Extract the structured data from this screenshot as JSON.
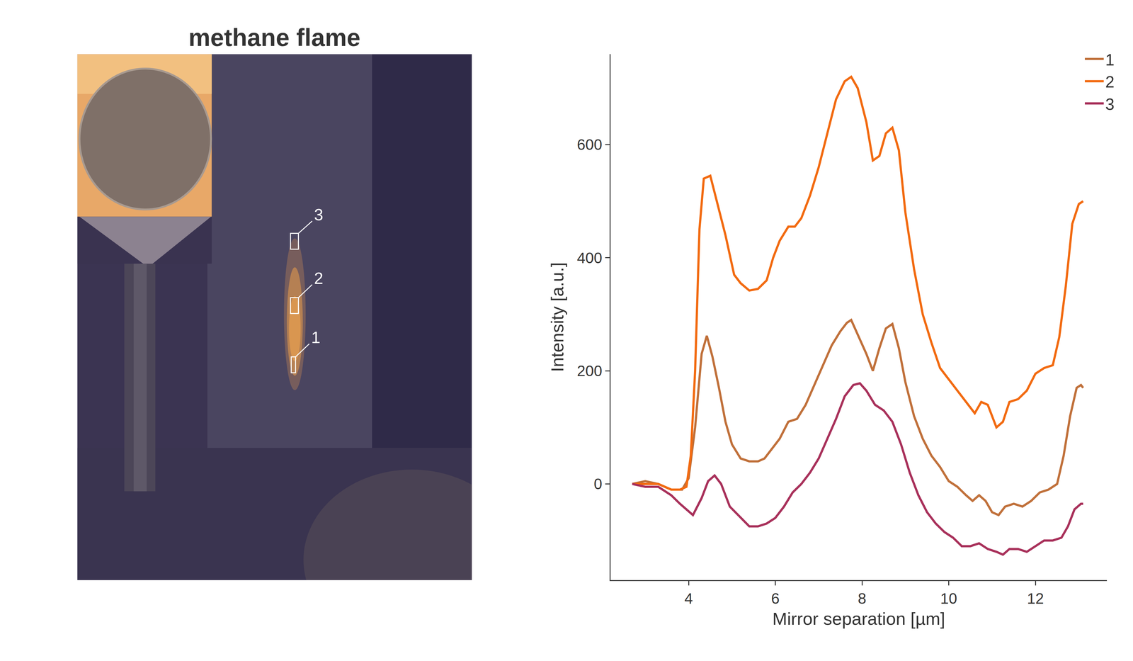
{
  "chart_data": [
    {
      "type": "image",
      "title": "methane flame",
      "labels": [
        "1",
        "2",
        "3"
      ]
    },
    {
      "type": "line",
      "x_label": "Mirror separation [µm]",
      "y_label": "Intensity [a.u.]",
      "xlim": [
        2.2,
        13.65
      ],
      "ylim": [
        -170,
        760
      ],
      "xticks": [
        4,
        6,
        8,
        10,
        12
      ],
      "yticks": [
        0,
        200,
        400,
        600
      ],
      "legend": "top right",
      "grid": false,
      "series": [
        {
          "name": "1",
          "color": "#c0703a",
          "x": [
            2.7,
            3.0,
            3.3,
            3.6,
            3.85,
            4.0,
            4.15,
            4.3,
            4.42,
            4.55,
            4.7,
            4.85,
            5.0,
            5.2,
            5.4,
            5.6,
            5.75,
            5.9,
            6.1,
            6.3,
            6.5,
            6.7,
            6.9,
            7.1,
            7.3,
            7.5,
            7.65,
            7.75,
            7.9,
            8.1,
            8.25,
            8.4,
            8.55,
            8.7,
            8.85,
            9.0,
            9.2,
            9.4,
            9.6,
            9.8,
            10.0,
            10.2,
            10.4,
            10.55,
            10.7,
            10.85,
            11.0,
            11.15,
            11.3,
            11.5,
            11.7,
            11.9,
            12.1,
            12.3,
            12.5,
            12.65,
            12.8,
            12.95,
            13.05,
            13.1
          ],
          "values": [
            0,
            5,
            0,
            -10,
            -10,
            10,
            100,
            230,
            262,
            225,
            170,
            110,
            70,
            45,
            40,
            40,
            45,
            60,
            80,
            110,
            115,
            140,
            175,
            210,
            245,
            270,
            285,
            290,
            265,
            230,
            200,
            240,
            275,
            283,
            240,
            180,
            120,
            80,
            50,
            30,
            5,
            -5,
            -20,
            -30,
            -20,
            -30,
            -50,
            -55,
            -40,
            -35,
            -40,
            -30,
            -15,
            -10,
            0,
            50,
            120,
            170,
            175,
            170
          ]
        },
        {
          "name": "2",
          "color": "#f26a10",
          "x": [
            2.7,
            3.0,
            3.3,
            3.6,
            3.8,
            3.95,
            4.05,
            4.15,
            4.25,
            4.35,
            4.5,
            4.65,
            4.85,
            5.05,
            5.2,
            5.4,
            5.6,
            5.8,
            5.95,
            6.1,
            6.3,
            6.45,
            6.6,
            6.8,
            7.0,
            7.2,
            7.4,
            7.6,
            7.75,
            7.9,
            8.1,
            8.25,
            8.4,
            8.55,
            8.7,
            8.85,
            9.0,
            9.2,
            9.4,
            9.6,
            9.8,
            10.0,
            10.2,
            10.4,
            10.6,
            10.75,
            10.9,
            11.1,
            11.25,
            11.4,
            11.6,
            11.8,
            12.0,
            12.2,
            12.4,
            12.55,
            12.7,
            12.85,
            13.0,
            13.1
          ],
          "values": [
            0,
            0,
            0,
            -10,
            -10,
            -5,
            50,
            200,
            450,
            540,
            545,
            500,
            440,
            370,
            355,
            342,
            345,
            360,
            400,
            430,
            455,
            455,
            470,
            510,
            560,
            620,
            680,
            712,
            720,
            700,
            640,
            572,
            580,
            620,
            630,
            590,
            480,
            380,
            300,
            250,
            205,
            185,
            165,
            145,
            125,
            145,
            140,
            100,
            110,
            145,
            150,
            165,
            195,
            205,
            210,
            260,
            350,
            460,
            495,
            500
          ]
        },
        {
          "name": "3",
          "color": "#a8305a",
          "x": [
            2.7,
            3.0,
            3.3,
            3.6,
            3.8,
            4.1,
            4.3,
            4.45,
            4.6,
            4.75,
            4.95,
            5.2,
            5.4,
            5.6,
            5.8,
            6.0,
            6.2,
            6.4,
            6.6,
            6.8,
            7.0,
            7.2,
            7.4,
            7.6,
            7.8,
            7.95,
            8.1,
            8.3,
            8.5,
            8.7,
            8.9,
            9.1,
            9.3,
            9.5,
            9.7,
            9.9,
            10.1,
            10.3,
            10.5,
            10.7,
            10.9,
            11.1,
            11.25,
            11.4,
            11.6,
            11.8,
            12.0,
            12.2,
            12.4,
            12.6,
            12.75,
            12.9,
            13.05,
            13.1
          ],
          "values": [
            0,
            -5,
            -5,
            -20,
            -35,
            -55,
            -25,
            5,
            15,
            0,
            -40,
            -60,
            -75,
            -75,
            -70,
            -60,
            -40,
            -15,
            0,
            20,
            45,
            80,
            115,
            155,
            175,
            178,
            165,
            140,
            130,
            110,
            70,
            20,
            -20,
            -50,
            -70,
            -85,
            -95,
            -110,
            -110,
            -105,
            -115,
            -120,
            -125,
            -115,
            -115,
            -120,
            -110,
            -100,
            -100,
            -95,
            -75,
            -45,
            -35,
            -35
          ]
        }
      ]
    }
  ]
}
